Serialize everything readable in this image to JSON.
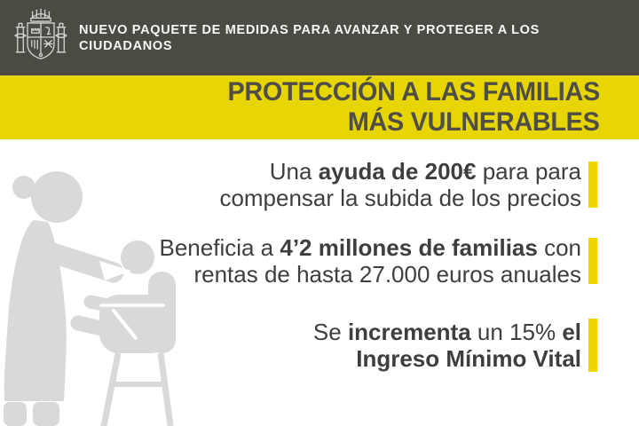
{
  "colors": {
    "header_bg": "#4b4b44",
    "band_yellow": "#e8d505",
    "accent_yellow": "#f0d500",
    "title_text": "#4e4e46",
    "body_text": "#3e3e3e",
    "header_text": "#f7f7f7",
    "silhouette_gray": "#d9d9d9"
  },
  "header": {
    "logo_icon": "spain-coat-of-arms",
    "text": "NUEVO PAQUETE DE MEDIDAS PARA AVANZAR Y PROTEGER A LOS CIUDADANOS"
  },
  "title": {
    "line1": "PROTECCIÓN A LAS FAMILIAS",
    "line2": "MÁS VULNERABLES"
  },
  "illustration": {
    "name": "caregiver-feeding-child-in-high-chair"
  },
  "bullets": [
    {
      "lines": [
        [
          {
            "t": "Una ",
            "b": false
          },
          {
            "t": "ayuda de 200€",
            "b": true
          },
          {
            "t": " para para",
            "b": false
          }
        ],
        [
          {
            "t": "compensar la subida de los precios",
            "b": false
          }
        ]
      ]
    },
    {
      "lines": [
        [
          {
            "t": "Beneficia a ",
            "b": false
          },
          {
            "t": "4’2 millones de familias",
            "b": true
          },
          {
            "t": " con",
            "b": false
          }
        ],
        [
          {
            "t": "rentas de hasta 27.000 euros anuales",
            "b": false
          }
        ]
      ]
    },
    {
      "lines": [
        [
          {
            "t": "Se ",
            "b": false
          },
          {
            "t": "incrementa",
            "b": true
          },
          {
            "t": " un 15% ",
            "b": false
          },
          {
            "t": "el",
            "b": true
          }
        ],
        [
          {
            "t": "Ingreso Mínimo Vital",
            "b": true
          }
        ]
      ]
    }
  ]
}
